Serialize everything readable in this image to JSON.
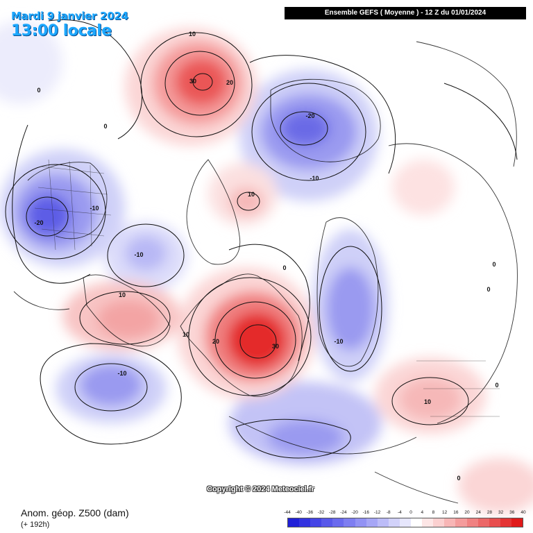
{
  "header": {
    "date": "Mardi 9 janvier 2024",
    "local_time": "13:00 locale",
    "run_info": "Ensemble GEFS  ( Moyenne )  -  12 Z du 01/01/2024"
  },
  "footer": {
    "parameter": "Anom. géop. Z500 (dam)",
    "lead_time": "(+ 192h)",
    "copyright": "Copyright © 2024 Meteociel.fr"
  },
  "scale": {
    "ticks": [
      "-44",
      "-40",
      "-36",
      "-32",
      "-28",
      "-24",
      "-20",
      "-16",
      "-12",
      "-8",
      "-4",
      "0",
      "4",
      "8",
      "12",
      "16",
      "20",
      "24",
      "28",
      "32",
      "36",
      "40"
    ],
    "colors": [
      "#2020d8",
      "#3333e0",
      "#4545e6",
      "#5858ea",
      "#6a6aee",
      "#7e7ef1",
      "#9292f4",
      "#a6a6f6",
      "#bcbcf8",
      "#d2d2fa",
      "#e6e6fc",
      "#ffffff",
      "#fde6e6",
      "#fbd0d0",
      "#f8b6b6",
      "#f49c9c",
      "#f08282",
      "#ec6868",
      "#e84e4e",
      "#e43434",
      "#e01a1a"
    ]
  },
  "contour_labels": [
    {
      "text": "-20",
      "id": "greenland-low"
    },
    {
      "text": "-10",
      "id": "canada-ring"
    },
    {
      "text": "-10",
      "id": "pacific-low"
    },
    {
      "text": "-20",
      "id": "siberia-low"
    },
    {
      "text": "-10",
      "id": "siberia-ring"
    },
    {
      "text": "-10",
      "id": "alaska-low"
    },
    {
      "text": "-10",
      "id": "east-asia-trough"
    },
    {
      "text": "30",
      "id": "atlantic-high"
    },
    {
      "text": "20",
      "id": "atlantic-ring"
    },
    {
      "text": "10",
      "id": "atlantic-outer"
    },
    {
      "text": "30",
      "id": "europe-high"
    },
    {
      "text": "20",
      "id": "europe-ring"
    },
    {
      "text": "10",
      "id": "europe-outer"
    },
    {
      "text": "10",
      "id": "arctic-high"
    },
    {
      "text": "10",
      "id": "mexico-high"
    },
    {
      "text": "10",
      "id": "africa-high"
    },
    {
      "text": "0",
      "id": "zero-west"
    },
    {
      "text": "0",
      "id": "zero-north"
    },
    {
      "text": "0",
      "id": "zero-mid"
    },
    {
      "text": "0",
      "id": "zero-east1"
    },
    {
      "text": "0",
      "id": "zero-east2"
    },
    {
      "text": "0",
      "id": "zero-east3"
    },
    {
      "text": "0",
      "id": "zero-south"
    }
  ]
}
